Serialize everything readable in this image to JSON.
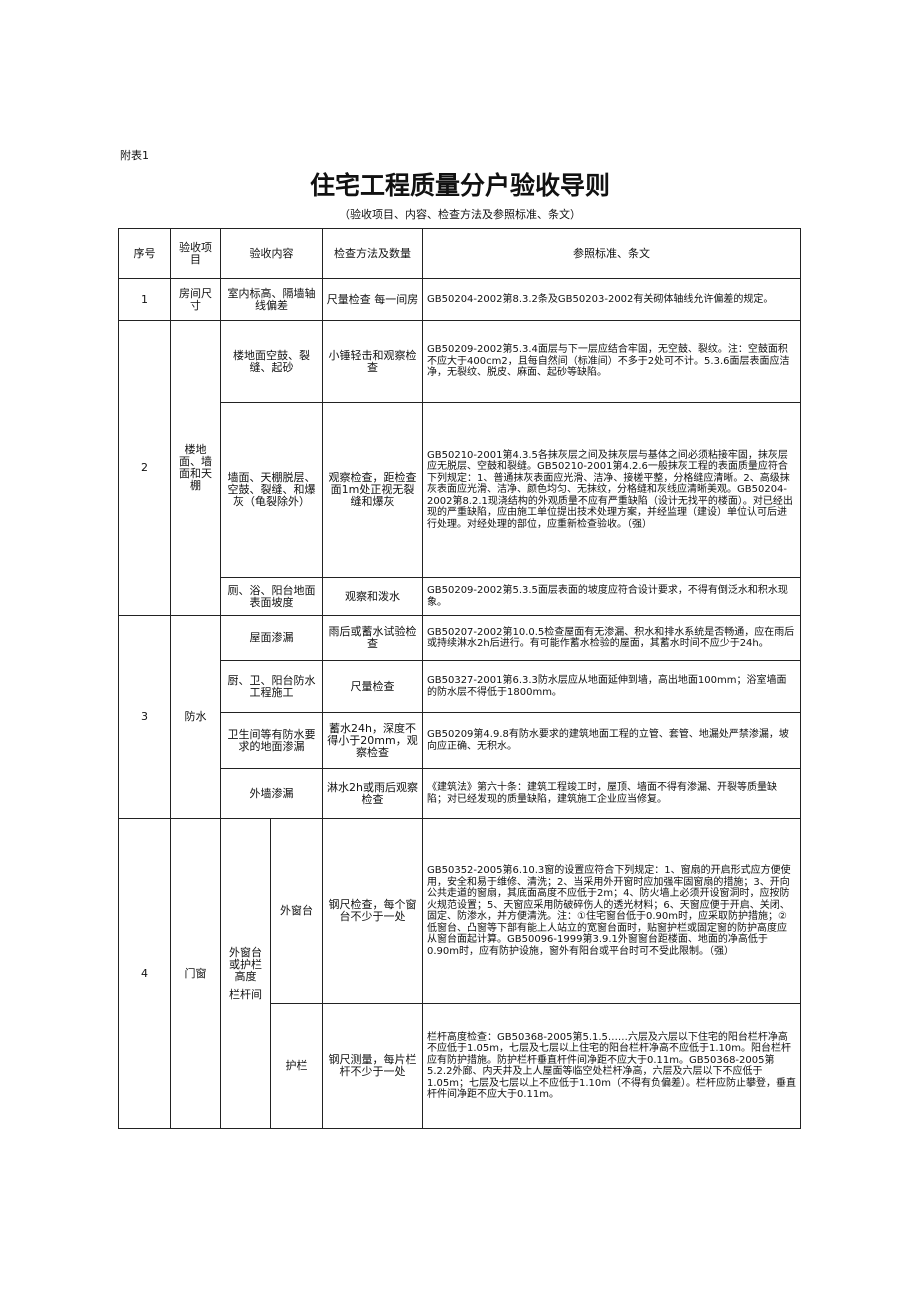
{
  "header": {
    "label": "附表1",
    "title": "住宅工程质量分户验收导则",
    "subtitle": "（验收项目、内容、检查方法及参照标准、条文）"
  },
  "table": {
    "headers": [
      "序号",
      "验收项目",
      "验收内容",
      "检查方法及数量",
      "参照标准、条文"
    ],
    "groups": [
      {
        "no": "1",
        "item": "房间尺寸",
        "entries": [
          {
            "content": "室内标高、隔墙轴线偏差",
            "method": "尺量检查 每一间房",
            "standard": "GB50204-2002第8.3.2条及GB50203-2002有关砌体轴线允许偏差的规定。"
          }
        ]
      },
      {
        "no": "2",
        "item": "楼地面、墙面和天棚",
        "entries": [
          {
            "content": "楼地面空鼓、裂缝、起砂",
            "method": "小锤轻击和观察检查",
            "standard": "GB50209-2002第5.3.4面层与下一层应结合牢固，无空鼓、裂纹。注：空鼓面积不应大于400cm2，且每自然间（标准间）不多于2处可不计。5.3.6面层表面应洁净，无裂纹、脱皮、麻面、起砂等缺陷。"
          },
          {
            "content": "墙面、天棚脱层、空鼓、裂缝、和爆灰（龟裂除外）",
            "method": "观察检查，距检查面1m处正视无裂缝和爆灰",
            "standard": "GB50210-2001第4.3.5各抹灰层之间及抹灰层与基体之间必须粘接牢固，抹灰层应无脱层、空鼓和裂缝。GB50210-2001第4.2.6一般抹灰工程的表面质量应符合下列规定：1、普通抹灰表面应光滑、洁净、接槎平整，分格缝应清晰。2、高级抹灰表面应光滑、洁净、颜色均匀、无抹纹，分格缝和灰线应清晰美观。GB50204-2002第8.2.1现浇结构的外观质量不应有严重缺陷（设计无找平的楼面）。对已经出现的严重缺陷，应由施工单位提出技术处理方案，并经监理（建设）单位认可后进行处理。对经处理的部位，应重新检查验收。（强）"
          },
          {
            "content": "厕、浴、阳台地面表面坡度",
            "method": "观察和泼水",
            "standard": "GB50209-2002第5.3.5面层表面的坡度应符合设计要求，不得有倒泛水和积水现象。"
          }
        ]
      },
      {
        "no": "3",
        "item": "防水",
        "entries": [
          {
            "content": "屋面渗漏",
            "method": "雨后或蓄水试验检查",
            "standard": "GB50207-2002第10.0.5检查屋面有无渗漏、积水和排水系统是否畅通，应在雨后或持续淋水2h后进行。有可能作蓄水检验的屋面，其蓄水时间不应少于24h。"
          },
          {
            "content": "厨、卫、阳台防水工程施工",
            "method": "尺量检查",
            "standard": "GB50327-2001第6.3.3防水层应从地面延伸到墙，高出地面100mm；浴室墙面的防水层不得低于1800mm。"
          },
          {
            "content": "卫生间等有防水要求的地面渗漏",
            "method": "蓄水24h，深度不得小于20mm，观察检查",
            "standard": "GB50209第4.9.8有防水要求的建筑地面工程的立管、套管、地漏处严禁渗漏，坡向应正确、无积水。"
          },
          {
            "content": "外墙渗漏",
            "method": "淋水2h或雨后观察检查",
            "standard": "《建筑法》第六十条：建筑工程竣工时，屋顶、墙面不得有渗漏、开裂等质量缺陷；对已经发现的质量缺陷，建筑施工企业应当修复。"
          }
        ]
      },
      {
        "no": "4",
        "item": "门窗",
        "subitem": [
          "外窗台或护栏高度",
          "栏杆间"
        ],
        "entries": [
          {
            "content": "外窗台",
            "method": "钢尺检查，每个窗台不少于一处",
            "standard": "GB50352-2005第6.10.3窗的设置应符合下列规定：1、窗扇的开启形式应方便使用，安全和易于维修、清洗；2、当采用外开窗时应加强牢固窗扇的措施；3、开向公共走道的窗扇，其底面高度不应低于2m；4、防火墙上必须开设窗洞时，应按防火规范设置；5、天窗应采用防破碎伤人的透光材料；6、天窗应便于开启、关闭、固定、防渗水，并方便清洗。注：①住宅窗台低于0.90m时，应采取防护措施；②低窗台、凸窗等下部有能上人站立的宽窗台面时，贴窗护栏或固定窗的防护高度应从窗台面起计算。GB50096-1999第3.9.1外窗窗台距楼面、地面的净高低于0.90m时，应有防护设施，窗外有阳台或平台时可不受此限制。（强）"
          },
          {
            "content": "护栏",
            "method": "钢尺测量，每片栏杆不少于一处",
            "standard": "栏杆高度检查：GB50368-2005第5.1.5……六层及六层以下住宅的阳台栏杆净高不应低于1.05m，七层及七层以上住宅的阳台栏杆净高不应低于1.10m。阳台栏杆应有防护措施。防护栏杆垂直杆件间净距不应大于0.11m。GB50368-2005第5.2.2外廊、内天井及上人屋面等临空处栏杆净高，六层及六层以下不应低于1.05m；七层及七层以上不应低于1.10m（不得有负偏差）。栏杆应防止攀登，垂直杆件间净距不应大于0.11m。"
          }
        ]
      }
    ]
  }
}
